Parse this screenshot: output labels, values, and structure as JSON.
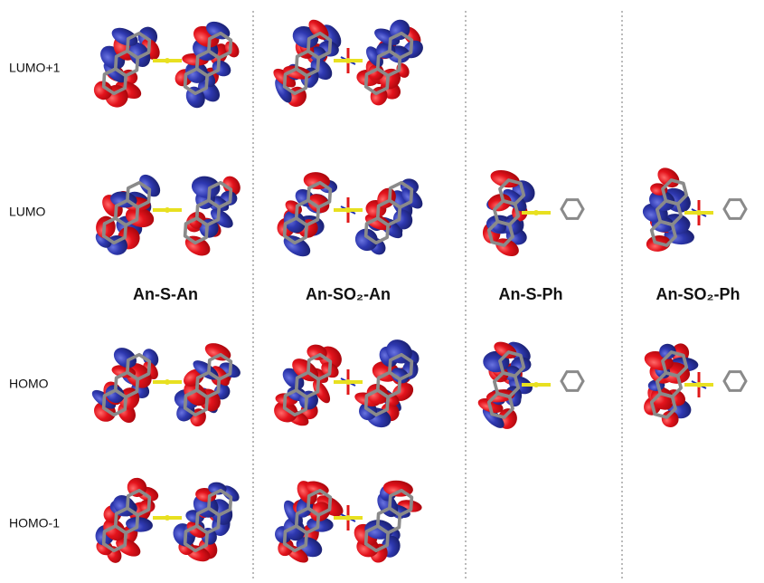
{
  "rows": [
    "LUMO+1",
    "LUMO",
    "HOMO",
    "HOMO-1"
  ],
  "columns": [
    "An-S-An",
    "An-SO₂-An",
    "An-S-Ph",
    "An-SO₂-Ph"
  ]
}
